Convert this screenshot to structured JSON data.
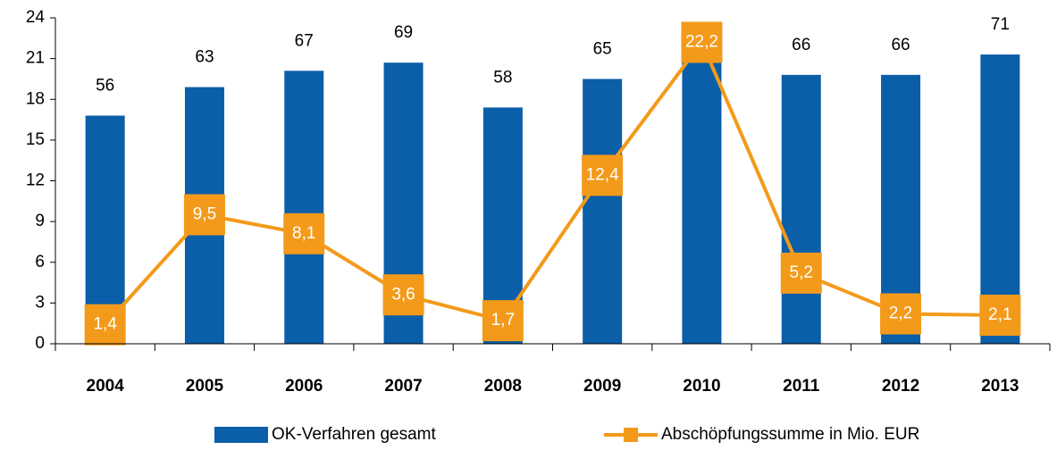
{
  "chart_data": {
    "type": "bar-line",
    "categories": [
      "2004",
      "2005",
      "2006",
      "2007",
      "2008",
      "2009",
      "2010",
      "2011",
      "2012",
      "2013"
    ],
    "series": [
      {
        "name": "OK-Verfahren gesamt",
        "type": "bar",
        "axis": "y2",
        "color": "#0b5ea8",
        "values": [
          56,
          63,
          67,
          69,
          58,
          65,
          69,
          66,
          66,
          71
        ]
      },
      {
        "name": "Abschöpfungssumme in Mio. EUR",
        "type": "line",
        "color": "#f39a1a",
        "values": [
          1.4,
          9.5,
          8.1,
          3.6,
          1.7,
          12.4,
          22.2,
          5.2,
          2.2,
          2.1
        ],
        "value_labels": [
          "1,4",
          "9,5",
          "8,1",
          "3,6",
          "1,7",
          "12,4",
          "22,2",
          "5,2",
          "2,2",
          "2,1"
        ]
      }
    ],
    "ylim": [
      0,
      24
    ],
    "yticks": [
      0,
      3,
      6,
      9,
      12,
      15,
      18,
      21,
      24
    ],
    "y2lim": [
      0,
      80
    ],
    "grid": false,
    "legend": "bottom"
  }
}
